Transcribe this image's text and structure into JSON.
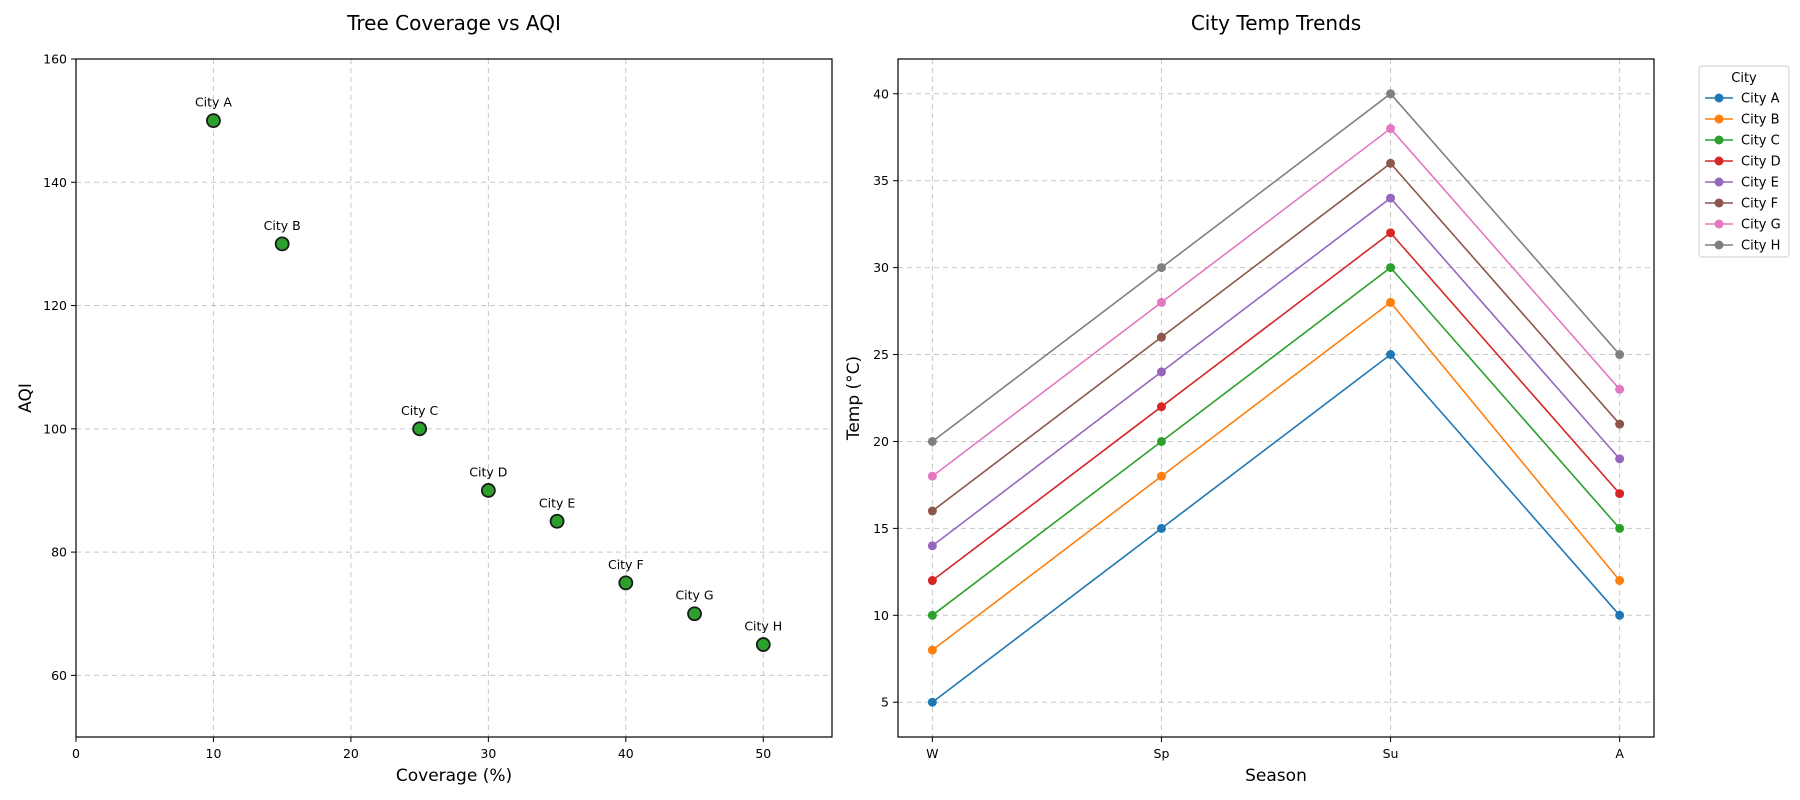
{
  "chart_data": [
    {
      "type": "scatter",
      "title": "Tree Coverage vs AQI",
      "xlabel": "Coverage (%)",
      "ylabel": "AQI",
      "xlim": [
        0,
        55
      ],
      "ylim": [
        50,
        160
      ],
      "xticks": [
        0,
        10,
        20,
        30,
        40,
        50
      ],
      "yticks": [
        60,
        80,
        100,
        120,
        140,
        160
      ],
      "grid": true,
      "point_color": "#2ca02c",
      "points": [
        {
          "label": "City A",
          "x": 10,
          "y": 150
        },
        {
          "label": "City B",
          "x": 15,
          "y": 130
        },
        {
          "label": "City C",
          "x": 25,
          "y": 100
        },
        {
          "label": "City D",
          "x": 30,
          "y": 90
        },
        {
          "label": "City E",
          "x": 35,
          "y": 85
        },
        {
          "label": "City F",
          "x": 40,
          "y": 75
        },
        {
          "label": "City G",
          "x": 45,
          "y": 70
        },
        {
          "label": "City H",
          "x": 50,
          "y": 65
        }
      ]
    },
    {
      "type": "line",
      "title": "City Temp Trends",
      "xlabel": "Season",
      "ylabel": "Temp (°C)",
      "categories": [
        "W",
        "Sp",
        "Su",
        "A"
      ],
      "ylim": [
        3,
        42
      ],
      "yticks": [
        5,
        10,
        15,
        20,
        25,
        30,
        35,
        40
      ],
      "grid": true,
      "legend": {
        "title": "City",
        "placement": "outside-top-right"
      },
      "series": [
        {
          "name": "City A",
          "color": "#1f77b4",
          "values": [
            5,
            15,
            25,
            10
          ]
        },
        {
          "name": "City B",
          "color": "#ff7f0e",
          "values": [
            8,
            18,
            28,
            12
          ]
        },
        {
          "name": "City C",
          "color": "#2ca02c",
          "values": [
            10,
            20,
            30,
            15
          ]
        },
        {
          "name": "City D",
          "color": "#d62728",
          "values": [
            12,
            22,
            32,
            17
          ]
        },
        {
          "name": "City E",
          "color": "#9467bd",
          "values": [
            14,
            24,
            34,
            19
          ]
        },
        {
          "name": "City F",
          "color": "#8c564b",
          "values": [
            16,
            26,
            36,
            21
          ]
        },
        {
          "name": "City G",
          "color": "#e377c2",
          "values": [
            18,
            28,
            38,
            23
          ]
        },
        {
          "name": "City H",
          "color": "#7f7f7f",
          "values": [
            20,
            30,
            40,
            25
          ]
        }
      ]
    }
  ]
}
